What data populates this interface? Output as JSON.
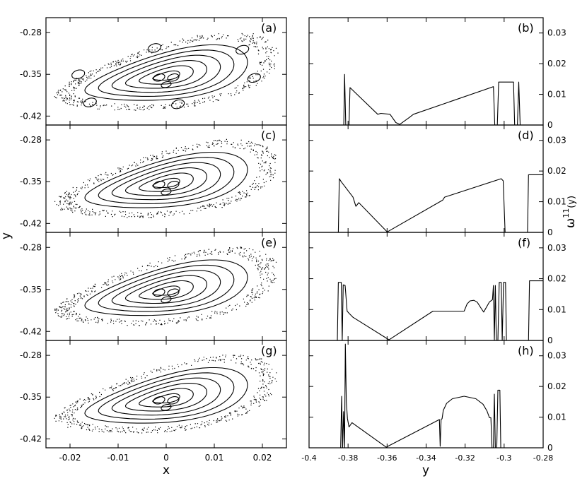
{
  "chart_data": [
    {
      "type": "scatter",
      "panels": [
        {
          "label": "(a)",
          "islands": 6
        },
        {
          "label": "(c)",
          "islands": 0
        },
        {
          "label": "(e)",
          "islands": 0
        },
        {
          "label": "(g)",
          "islands": 0
        }
      ],
      "xlabel": "x",
      "ylabel": "y",
      "xlim": [
        -0.025,
        0.025
      ],
      "ylim": [
        -0.435,
        -0.255
      ],
      "x_ticks": [
        "-0.02",
        "-0.01",
        "0",
        "0.01",
        "0.02"
      ],
      "x_tick_values": [
        -0.02,
        -0.01,
        0,
        0.01,
        0.02
      ],
      "y_ticks": [
        "-0.28",
        "-0.35",
        "-0.42"
      ],
      "y_tick_values": [
        -0.28,
        -0.35,
        -0.42
      ],
      "grid": false
    },
    {
      "type": "line",
      "xlabel": "y",
      "ylabel": "ω¹¹(y)",
      "ylabel_base": "ω",
      "ylabel_sup": "11",
      "ylabel_tail": "(y)",
      "xlim": [
        -0.4,
        -0.28
      ],
      "ylim": [
        0,
        0.035
      ],
      "x_ticks": [
        "-0.4",
        "-0.38",
        "-0.36",
        "-0.34",
        "-0.32",
        "-0.3",
        "-0.28"
      ],
      "x_tick_values": [
        -0.4,
        -0.38,
        -0.36,
        -0.34,
        -0.32,
        -0.3,
        -0.28
      ],
      "y_ticks": [
        "0",
        "0.01",
        "0.02",
        "0.03"
      ],
      "y_tick_values": [
        0,
        0.01,
        0.02,
        0.03
      ],
      "grid": false,
      "panels": [
        {
          "label": "(b)",
          "series": [
            [
              [
                -0.3822,
                0
              ],
              [
                -0.3818,
                0.0165
              ],
              [
                -0.3812,
                0
              ],
              [
                -0.3795,
                0
              ],
              [
                -0.379,
                0.0122
              ],
              [
                -0.3648,
                0.0035
              ],
              [
                -0.3632,
                0.0038
              ],
              [
                -0.3585,
                0.0035
              ],
              [
                -0.3555,
                0.0008
              ],
              [
                -0.3535,
                0.0002
              ],
              [
                -0.3485,
                0.0025
              ],
              [
                -0.3465,
                0.0035
              ],
              [
                -0.3055,
                0.0125
              ],
              [
                -0.3048,
                0
              ],
              [
                -0.3035,
                0
              ],
              [
                -0.3028,
                0.014
              ],
              [
                -0.2952,
                0.014
              ],
              [
                -0.2946,
                0
              ],
              [
                -0.2932,
                0
              ],
              [
                -0.2925,
                0.014
              ],
              [
                -0.2918,
                0
              ]
            ]
          ]
        },
        {
          "label": "(d)",
          "series": [
            [
              [
                -0.385,
                0
              ],
              [
                -0.3845,
                0.0175
              ],
              [
                -0.3835,
                0.0165
              ],
              [
                -0.3775,
                0.0115
              ],
              [
                -0.376,
                0.0085
              ],
              [
                -0.3745,
                0.0097
              ],
              [
                -0.36,
                0.0002
              ],
              [
                -0.3595,
                0.0003
              ],
              [
                -0.3315,
                0.0105
              ],
              [
                -0.3305,
                0.0115
              ],
              [
                -0.3015,
                0.0175
              ],
              [
                -0.3005,
                0.0168
              ],
              [
                -0.2995,
                0
              ]
            ],
            [
              [
                -0.288,
                0
              ],
              [
                -0.2875,
                0.0188
              ],
              [
                -0.28,
                0.0188
              ]
            ]
          ]
        },
        {
          "label": "(f)",
          "series": [
            [
              [
                -0.4,
                0
              ],
              [
                -0.3855,
                0
              ],
              [
                -0.385,
                0.0188
              ],
              [
                -0.3835,
                0.0188
              ],
              [
                -0.383,
                0
              ],
              [
                -0.3825,
                0.018
              ],
              [
                -0.3815,
                0.0178
              ],
              [
                -0.3805,
                0.0095
              ],
              [
                -0.3795,
                0.0088
              ],
              [
                -0.3775,
                0.0075
              ],
              [
                -0.359,
                0.0002
              ],
              [
                -0.3365,
                0.0095
              ],
              [
                -0.3205,
                0.0095
              ],
              [
                -0.319,
                0.0118
              ],
              [
                -0.3175,
                0.0128
              ],
              [
                -0.3155,
                0.013
              ],
              [
                -0.3138,
                0.0124
              ],
              [
                -0.3118,
                0.0104
              ],
              [
                -0.3105,
                0.0092
              ],
              [
                -0.3075,
                0.0125
              ],
              [
                -0.306,
                0.0132
              ],
              [
                -0.3055,
                0.0178
              ],
              [
                -0.305,
                0
              ],
              [
                -0.3045,
                0.0178
              ],
              [
                -0.304,
                0
              ],
              [
                -0.3032,
                0
              ],
              [
                -0.3025,
                0.0188
              ],
              [
                -0.3015,
                0.0188
              ],
              [
                -0.301,
                0
              ],
              [
                -0.3003,
                0.0188
              ],
              [
                -0.2993,
                0.0188
              ],
              [
                -0.2988,
                0
              ],
              [
                -0.2875,
                0
              ],
              [
                -0.287,
                0.0193
              ],
              [
                -0.28,
                0.0193
              ]
            ]
          ]
        },
        {
          "label": "(h)",
          "series": [
            [
              [
                -0.3838,
                0
              ],
              [
                -0.3833,
                0.0168
              ],
              [
                -0.3828,
                0
              ],
              [
                -0.3823,
                0.0118
              ],
              [
                -0.3818,
                0
              ],
              [
                -0.3814,
                0.0338
              ],
              [
                -0.3809,
                0.015
              ],
              [
                -0.3803,
                0.0095
              ],
              [
                -0.3795,
                0.0068
              ],
              [
                -0.378,
                0.0082
              ],
              [
                -0.3605,
                0.0002
              ],
              [
                -0.3332,
                0.0092
              ],
              [
                -0.3328,
                0.0005
              ],
              [
                -0.3323,
                0.0092
              ],
              [
                -0.3318,
                0.0095
              ],
              [
                -0.3312,
                0.0122
              ],
              [
                -0.3295,
                0.0145
              ],
              [
                -0.3265,
                0.016
              ],
              [
                -0.3205,
                0.0168
              ],
              [
                -0.3145,
                0.016
              ],
              [
                -0.3108,
                0.0142
              ],
              [
                -0.3088,
                0.012
              ],
              [
                -0.3075,
                0.0098
              ],
              [
                -0.3068,
                0.0098
              ],
              [
                -0.3062,
                0
              ],
              [
                -0.3055,
                0
              ],
              [
                -0.305,
                0.0175
              ],
              [
                -0.3045,
                0
              ],
              [
                -0.3038,
                0
              ],
              [
                -0.3032,
                0.0188
              ],
              [
                -0.3022,
                0.0188
              ],
              [
                -0.3017,
                0
              ]
            ]
          ]
        }
      ]
    }
  ]
}
